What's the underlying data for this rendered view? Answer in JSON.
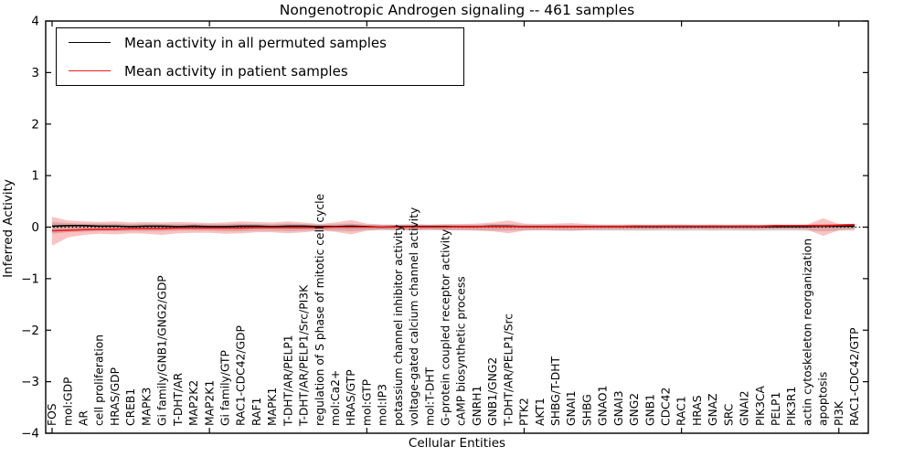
{
  "chart_data": {
    "type": "line",
    "title": "Nongenotropic Androgen signaling -- 461 samples",
    "xlabel": "Cellular Entities",
    "ylabel": "Inferred Activity",
    "ylim": [
      -4,
      4
    ],
    "ytick_labels": [
      "4",
      "3",
      "2",
      "1",
      "0",
      "−1",
      "−2",
      "−3",
      "−4"
    ],
    "xticks_at": [
      0,
      10,
      20,
      30,
      40,
      50
    ],
    "grid": false,
    "legend_position": "upper left",
    "zero_line": true,
    "categories": [
      "FOS",
      "mol:GDP",
      "AR",
      "cell proliferation",
      "HRAS/GDP",
      "CREB1",
      "MAPK3",
      "Gi family/GNB1/GNG2/GDP",
      "T-DHT/AR",
      "MAP2K2",
      "MAP2K1",
      "Gi family/GTP",
      "RAC1-CDC42/GDP",
      "RAF1",
      "MAPK1",
      "T-DHT/AR/PELP1",
      "T-DHT/AR/PELP1/Src/PI3K",
      "regulation of S phase of mitotic cell cycle",
      "mol:Ca2+",
      "HRAS/GTP",
      "mol:GTP",
      "mol:IP3",
      "potassium channel inhibitor activity",
      "voltage-gated calcium channel activity",
      "mol:T-DHT",
      "G-protein coupled receptor activity",
      "cAMP biosynthetic process",
      "GNRH1",
      "GNB1/GNG2",
      "T-DHT/AR/PELP1/Src",
      "PTK2",
      "AKT1",
      "SHBG/T-DHT",
      "GNAI1",
      "SHBG",
      "GNAO1",
      "GNAI3",
      "GNG2",
      "GNB1",
      "CDC42",
      "RAC1",
      "HRAS",
      "GNAZ",
      "SRC",
      "GNAI2",
      "PIK3CA",
      "PELP1",
      "PIK3R1",
      "actin cytoskeleton reorganization",
      "apoptosis",
      "PI3K",
      "RAC1-CDC42/GTP"
    ],
    "series": [
      {
        "name": "Mean activity in all permuted samples",
        "color": "#000000",
        "values": [
          0.02,
          0.03,
          0.03,
          0.02,
          0.02,
          0.01,
          0.02,
          0.02,
          0.01,
          0.02,
          0.01,
          0.01,
          0.02,
          0.02,
          0.01,
          0.02,
          0.02,
          0.01,
          0.01,
          0.02,
          0.01,
          0.0,
          0.01,
          0.01,
          0.01,
          0.01,
          0.01,
          0.01,
          0.02,
          0.02,
          0.01,
          0.01,
          0.01,
          0.01,
          0.01,
          0.01,
          0.01,
          0.01,
          0.01,
          0.01,
          0.01,
          0.01,
          0.01,
          0.01,
          0.01,
          0.01,
          0.01,
          0.01,
          0.01,
          0.02,
          0.02,
          0.02
        ]
      },
      {
        "name": "Mean activity in patient samples",
        "color": "#ee1c1c",
        "values": [
          -0.07,
          -0.06,
          -0.05,
          -0.04,
          -0.04,
          -0.03,
          -0.03,
          -0.03,
          -0.02,
          -0.02,
          -0.02,
          -0.02,
          -0.02,
          -0.01,
          -0.01,
          -0.01,
          -0.01,
          -0.01,
          0.0,
          0.0,
          0.0,
          0.0,
          0.0,
          0.0,
          0.0,
          0.0,
          0.01,
          0.01,
          0.01,
          0.01,
          0.01,
          0.01,
          0.01,
          0.01,
          0.01,
          0.01,
          0.01,
          0.02,
          0.02,
          0.02,
          0.02,
          0.02,
          0.02,
          0.02,
          0.02,
          0.02,
          0.03,
          0.03,
          0.03,
          0.03,
          0.04,
          0.05
        ]
      }
    ],
    "bands": [
      {
        "name": "permuted-std-band",
        "color": "rgba(0,0,0,0.15)",
        "upper": [
          0.1,
          0.08,
          0.07,
          0.07,
          0.07,
          0.06,
          0.07,
          0.06,
          0.06,
          0.06,
          0.06,
          0.06,
          0.07,
          0.06,
          0.06,
          0.07,
          0.06,
          0.05,
          0.06,
          0.07,
          0.05,
          0.05,
          0.05,
          0.05,
          0.05,
          0.05,
          0.05,
          0.05,
          0.06,
          0.06,
          0.05,
          0.05,
          0.05,
          0.05,
          0.05,
          0.05,
          0.05,
          0.05,
          0.05,
          0.05,
          0.05,
          0.05,
          0.05,
          0.05,
          0.05,
          0.05,
          0.05,
          0.05,
          0.05,
          0.06,
          0.05,
          0.05
        ],
        "lower": [
          -0.13,
          -0.1,
          -0.09,
          -0.08,
          -0.08,
          -0.08,
          -0.08,
          -0.08,
          -0.07,
          -0.07,
          -0.07,
          -0.08,
          -0.08,
          -0.07,
          -0.07,
          -0.08,
          -0.07,
          -0.06,
          -0.07,
          -0.08,
          -0.06,
          -0.06,
          -0.06,
          -0.06,
          -0.06,
          -0.06,
          -0.06,
          -0.06,
          -0.07,
          -0.07,
          -0.06,
          -0.06,
          -0.06,
          -0.07,
          -0.06,
          -0.07,
          -0.07,
          -0.07,
          -0.07,
          -0.07,
          -0.07,
          -0.07,
          -0.07,
          -0.07,
          -0.07,
          -0.07,
          -0.07,
          -0.07,
          -0.07,
          -0.08,
          -0.07,
          -0.07
        ]
      },
      {
        "name": "patient-std-band",
        "color": "rgba(238,28,28,0.27)",
        "upper": [
          0.2,
          0.13,
          0.11,
          0.1,
          0.11,
          0.09,
          0.1,
          0.09,
          0.1,
          0.09,
          0.08,
          0.09,
          0.11,
          0.1,
          0.09,
          0.11,
          0.09,
          0.06,
          0.09,
          0.14,
          0.07,
          0.05,
          0.05,
          0.06,
          0.05,
          0.06,
          0.06,
          0.07,
          0.09,
          0.13,
          0.07,
          0.06,
          0.07,
          0.08,
          0.06,
          0.05,
          0.05,
          0.05,
          0.04,
          0.05,
          0.05,
          0.04,
          0.05,
          0.04,
          0.05,
          0.04,
          0.05,
          0.04,
          0.05,
          0.17,
          0.06,
          0.06
        ],
        "lower": [
          -0.36,
          -0.2,
          -0.15,
          -0.13,
          -0.14,
          -0.12,
          -0.13,
          -0.15,
          -0.12,
          -0.11,
          -0.11,
          -0.13,
          -0.12,
          -0.1,
          -0.1,
          -0.12,
          -0.1,
          -0.07,
          -0.09,
          -0.14,
          -0.07,
          -0.05,
          -0.06,
          -0.06,
          -0.05,
          -0.06,
          -0.06,
          -0.07,
          -0.08,
          -0.12,
          -0.07,
          -0.06,
          -0.07,
          -0.07,
          -0.06,
          -0.05,
          -0.05,
          -0.05,
          -0.05,
          -0.04,
          -0.05,
          -0.04,
          -0.05,
          -0.04,
          -0.05,
          -0.05,
          -0.04,
          -0.04,
          -0.05,
          -0.17,
          -0.06,
          -0.04
        ]
      }
    ]
  }
}
